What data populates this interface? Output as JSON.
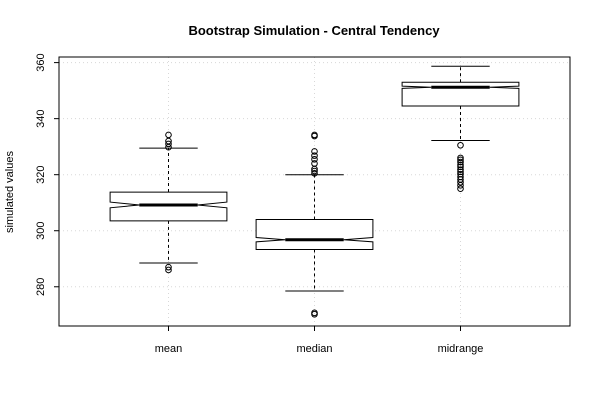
{
  "chart_data": {
    "type": "boxplot",
    "title": "Bootstrap Simulation - Central Tendency",
    "xlabel": "",
    "ylabel": "simulated values",
    "ylim": [
      266,
      362
    ],
    "yticks": [
      280,
      300,
      320,
      340,
      360
    ],
    "grid": true,
    "notched": true,
    "categories": [
      "mean",
      "median",
      "midrange"
    ],
    "boxes": [
      {
        "name": "mean",
        "whisker_low": 288.5,
        "q1": 303.5,
        "median": 309.2,
        "q3": 313.8,
        "whisker_high": 329.5,
        "notch_low": 308.2,
        "notch_high": 310.2,
        "outliers": [
          286.0,
          287.0,
          329.8,
          331.0,
          332.0,
          334.2
        ]
      },
      {
        "name": "median",
        "whisker_low": 278.5,
        "q1": 293.3,
        "median": 296.8,
        "q3": 304.0,
        "whisker_high": 320.0,
        "notch_low": 296.0,
        "notch_high": 297.6,
        "outliers": [
          270.2,
          270.7,
          320.5,
          321.3,
          322.0,
          324.0,
          325.5,
          326.8,
          328.3,
          333.8,
          334.2
        ]
      },
      {
        "name": "midrange",
        "whisker_low": 332.2,
        "q1": 344.5,
        "median": 351.2,
        "q3": 353.0,
        "whisker_high": 358.7,
        "notch_low": 350.8,
        "notch_high": 351.6,
        "outliers": [
          315.0,
          316.2,
          317.3,
          318.3,
          319.2,
          320.2,
          321.0,
          321.8,
          322.8,
          323.5,
          324.5,
          325.3,
          326.0,
          330.5
        ]
      }
    ]
  }
}
